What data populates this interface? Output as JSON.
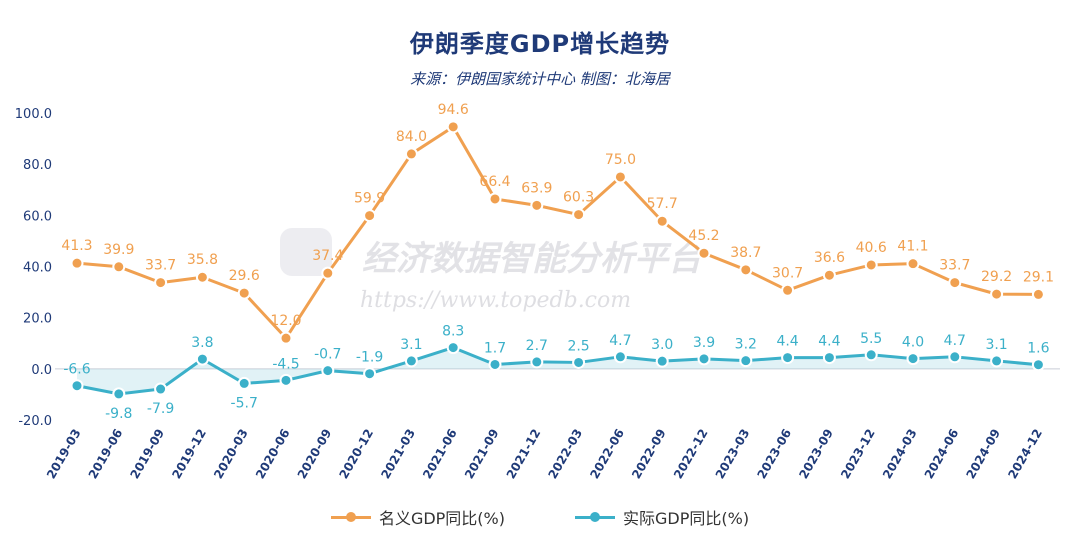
{
  "title": "伊朗季度GDP增长趋势",
  "subtitle": "来源：伊朗国家统计中心 制图：北海居",
  "watermark": {
    "brand": "经济数据智能分析平台",
    "url": "https://www.topedb.com"
  },
  "colors": {
    "nominal": "#f0a050",
    "real": "#3bb0c9",
    "axis_text": "#1f3a78",
    "grid": "#e3e6ee"
  },
  "chart_data": {
    "type": "line",
    "title": "伊朗季度GDP增长趋势",
    "subtitle": "来源：伊朗国家统计中心 制图：北海居",
    "categories": [
      "2019-03",
      "2019-06",
      "2019-09",
      "2019-12",
      "2020-03",
      "2020-06",
      "2020-09",
      "2020-12",
      "2021-03",
      "2021-06",
      "2021-09",
      "2021-12",
      "2022-03",
      "2022-06",
      "2022-09",
      "2022-12",
      "2023-03",
      "2023-06",
      "2023-09",
      "2023-12",
      "2024-03",
      "2024-06",
      "2024-09",
      "2024-12"
    ],
    "series": [
      {
        "name": "名义GDP同比(%)",
        "values": [
          41.3,
          39.9,
          33.7,
          35.8,
          29.6,
          12.0,
          37.4,
          59.9,
          84.0,
          94.6,
          66.4,
          63.9,
          60.3,
          75.0,
          57.7,
          45.2,
          38.7,
          30.7,
          36.6,
          40.6,
          41.1,
          33.7,
          29.2,
          29.1
        ]
      },
      {
        "name": "实际GDP同比(%)",
        "values": [
          -6.6,
          -9.8,
          -7.9,
          3.8,
          -5.7,
          -4.5,
          -0.7,
          -1.9,
          3.1,
          8.3,
          1.7,
          2.7,
          2.5,
          4.7,
          3.0,
          3.9,
          3.2,
          4.4,
          4.4,
          5.5,
          4.0,
          4.7,
          3.1,
          1.6
        ]
      }
    ],
    "yticks": [
      "100.0",
      "80.0",
      "60.0",
      "40.0",
      "20.0",
      "0.0",
      "-20.0"
    ],
    "ylim": [
      -20,
      100
    ],
    "grid": false,
    "legend": "bottom"
  },
  "legend": {
    "nominal": "名义GDP同比(%)",
    "real": "实际GDP同比(%)"
  }
}
